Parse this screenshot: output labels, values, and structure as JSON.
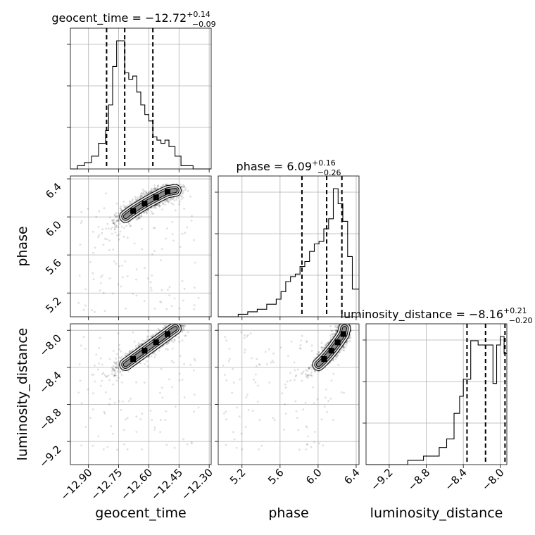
{
  "chart_data": {
    "type": "corner",
    "parameters": [
      "geocent_time",
      "phase",
      "luminosity_distance"
    ],
    "axis_labels": {
      "geocent_time": "geocent_time",
      "phase": "phase",
      "luminosity_distance": "luminosity_distance"
    },
    "ranges": {
      "geocent_time": [
        -12.99,
        -12.29
      ],
      "phase": [
        4.95,
        6.43
      ],
      "luminosity_distance": [
        -9.45,
        -7.93
      ]
    },
    "ticks": {
      "geocent_time": [
        -12.9,
        -12.75,
        -12.6,
        -12.45,
        -12.3
      ],
      "phase": [
        5.2,
        5.6,
        6.0,
        6.4
      ],
      "luminosity_distance": [
        -9.2,
        -8.8,
        -8.4,
        -8.0
      ]
    },
    "tick_labels": {
      "geocent_time": [
        "−12.90",
        "−12.75",
        "−12.60",
        "−12.45",
        "−12.30"
      ],
      "phase": [
        "5.2",
        "5.6",
        "6.0",
        "6.4"
      ],
      "luminosity_distance": [
        "−9.2",
        "−8.8",
        "−8.4",
        "−8.0"
      ]
    },
    "titles": [
      {
        "param": "geocent_time",
        "text": "geocent_time = −12.72",
        "plus": "+0.14",
        "minus": "−0.09"
      },
      {
        "param": "phase",
        "text": "phase = 6.09",
        "plus": "+0.16",
        "minus": "−0.26"
      },
      {
        "param": "luminosity_distance",
        "text": "luminosity_distance = −8.16",
        "plus": "+0.21",
        "minus": "−0.20"
      }
    ],
    "quantiles": {
      "geocent_time": [
        -12.81,
        -12.72,
        -12.58
      ],
      "phase": [
        5.83,
        6.09,
        6.25
      ],
      "luminosity_distance": [
        -8.36,
        -8.16,
        -7.95
      ]
    },
    "histograms": {
      "geocent_time": {
        "edges": [
          -12.99,
          -12.955,
          -12.92,
          -12.885,
          -12.85,
          -12.815,
          -12.8,
          -12.78,
          -12.76,
          -12.74,
          -12.72,
          -12.7,
          -12.68,
          -12.66,
          -12.64,
          -12.62,
          -12.6,
          -12.58,
          -12.56,
          -12.54,
          -12.52,
          -12.5,
          -12.47,
          -12.44,
          -12.41,
          -12.38,
          -12.35,
          -12.32,
          -12.29
        ],
        "counts": [
          0,
          1,
          2,
          4,
          8,
          12,
          20,
          32,
          40,
          40,
          30,
          28,
          29,
          24,
          20,
          17,
          15,
          10,
          9,
          8,
          9,
          7,
          4,
          1,
          1,
          0,
          0,
          0
        ]
      },
      "phase": {
        "edges": [
          4.95,
          5.16,
          5.26,
          5.36,
          5.46,
          5.56,
          5.61,
          5.66,
          5.71,
          5.76,
          5.81,
          5.86,
          5.91,
          5.96,
          6.01,
          6.06,
          6.11,
          6.16,
          6.21,
          6.26,
          6.31,
          6.36,
          6.43
        ],
        "counts": [
          0,
          1,
          2,
          3,
          5,
          7,
          10,
          14,
          16,
          17,
          20,
          22,
          26,
          29,
          30,
          35,
          39,
          51,
          45,
          38,
          24,
          11
        ]
      },
      "luminosity_distance": {
        "edges": [
          -9.45,
          -9.0,
          -8.83,
          -8.66,
          -8.58,
          -8.5,
          -8.44,
          -8.4,
          -8.32,
          -8.24,
          -8.16,
          -8.08,
          -8.04,
          -8.0,
          -7.96,
          -7.93
        ],
        "counts": [
          0,
          1,
          2,
          4,
          6,
          12,
          16,
          20,
          29,
          28,
          28,
          19,
          28,
          30,
          26
        ]
      }
    },
    "grid": true
  }
}
